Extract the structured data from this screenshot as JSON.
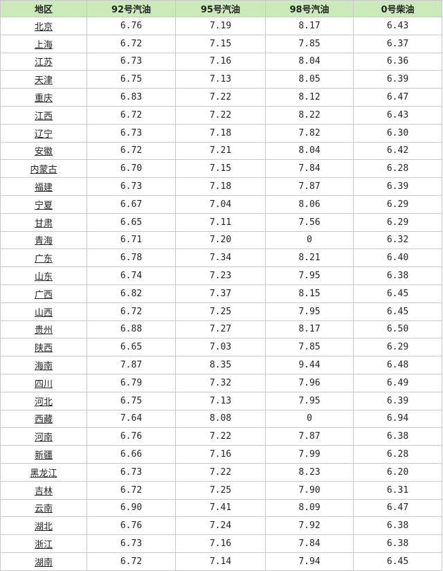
{
  "table": {
    "header": [
      "地区",
      "92号汽油",
      "95号汽油",
      "98号汽油",
      "0号柴油"
    ],
    "rows": [
      [
        "北京",
        "6.76",
        "7.19",
        "8.17",
        "6.43"
      ],
      [
        "上海",
        "6.72",
        "7.15",
        "7.85",
        "6.37"
      ],
      [
        "江苏",
        "6.73",
        "7.16",
        "8.04",
        "6.36"
      ],
      [
        "天津",
        "6.75",
        "7.13",
        "8.05",
        "6.39"
      ],
      [
        "重庆",
        "6.83",
        "7.22",
        "8.12",
        "6.47"
      ],
      [
        "江西",
        "6.72",
        "7.22",
        "8.22",
        "6.43"
      ],
      [
        "辽宁",
        "6.73",
        "7.18",
        "7.82",
        "6.30"
      ],
      [
        "安徽",
        "6.72",
        "7.21",
        "8.04",
        "6.42"
      ],
      [
        "内蒙古",
        "6.70",
        "7.15",
        "7.84",
        "6.28"
      ],
      [
        "福建",
        "6.73",
        "7.18",
        "7.87",
        "6.39"
      ],
      [
        "宁夏",
        "6.67",
        "7.04",
        "8.06",
        "6.29"
      ],
      [
        "甘肃",
        "6.65",
        "7.11",
        "7.56",
        "6.29"
      ],
      [
        "青海",
        "6.71",
        "7.20",
        "0",
        "6.32"
      ],
      [
        "广东",
        "6.78",
        "7.34",
        "8.21",
        "6.40"
      ],
      [
        "山东",
        "6.74",
        "7.23",
        "7.95",
        "6.38"
      ],
      [
        "广西",
        "6.82",
        "7.37",
        "8.15",
        "6.45"
      ],
      [
        "山西",
        "6.72",
        "7.25",
        "7.95",
        "6.45"
      ],
      [
        "贵州",
        "6.88",
        "7.27",
        "8.17",
        "6.50"
      ],
      [
        "陕西",
        "6.65",
        "7.03",
        "7.85",
        "6.29"
      ],
      [
        "海南",
        "7.87",
        "8.35",
        "9.44",
        "6.48"
      ],
      [
        "四川",
        "6.79",
        "7.32",
        "7.96",
        "6.49"
      ],
      [
        "河北",
        "6.75",
        "7.13",
        "7.95",
        "6.39"
      ],
      [
        "西藏",
        "7.64",
        "8.08",
        "0",
        "6.94"
      ],
      [
        "河南",
        "6.76",
        "7.22",
        "7.87",
        "6.38"
      ],
      [
        "新疆",
        "6.66",
        "7.16",
        "7.99",
        "6.28"
      ],
      [
        "黑龙江",
        "6.73",
        "7.22",
        "8.23",
        "6.20"
      ],
      [
        "吉林",
        "6.72",
        "7.25",
        "7.90",
        "6.31"
      ],
      [
        "云南",
        "6.90",
        "7.41",
        "8.09",
        "6.47"
      ],
      [
        "湖北",
        "6.76",
        "7.24",
        "7.92",
        "6.38"
      ],
      [
        "浙江",
        "6.73",
        "7.16",
        "7.84",
        "6.38"
      ],
      [
        "湖南",
        "6.72",
        "7.14",
        "7.94",
        "6.45"
      ]
    ]
  }
}
